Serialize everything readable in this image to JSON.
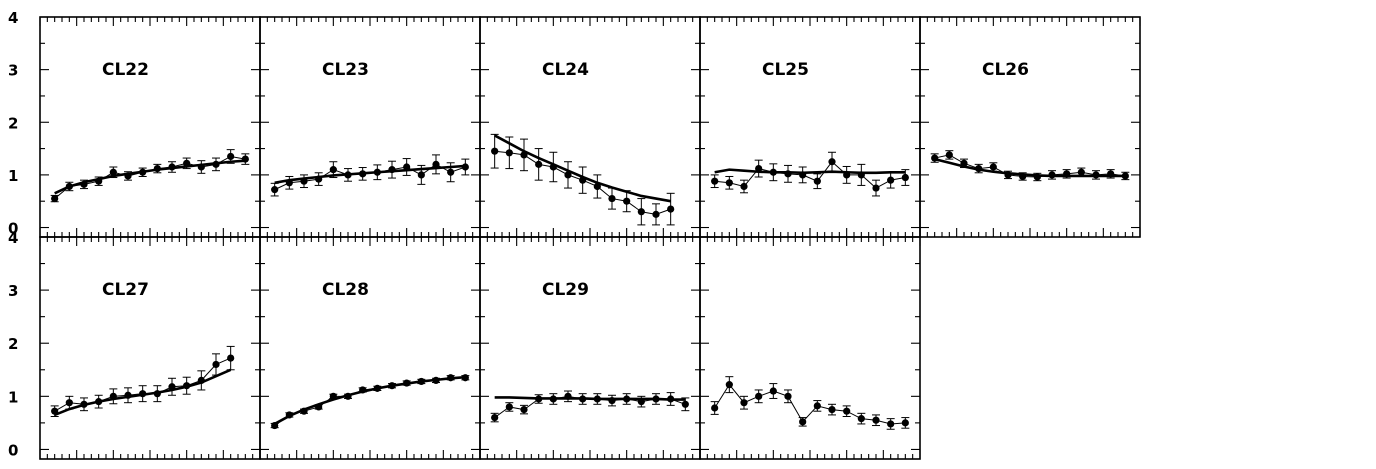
{
  "chart_data": {
    "type": "line",
    "layout": "2 rows x 5 columns of small-multiple panels",
    "ylim": [
      0,
      4
    ],
    "y_ticks": [
      "0",
      "1",
      "2",
      "3",
      "4"
    ],
    "x_labels_shown": false,
    "grid": false,
    "colors": {
      "ink": "#000000",
      "background": "#ffffff"
    },
    "panels": [
      {
        "label": "CL22",
        "x": [
          1,
          2,
          3,
          4,
          5,
          6,
          7,
          8,
          9,
          10,
          11,
          12,
          13,
          14
        ],
        "observed": [
          0.55,
          0.78,
          0.82,
          0.88,
          1.05,
          0.98,
          1.05,
          1.12,
          1.15,
          1.22,
          1.15,
          1.2,
          1.35,
          1.3
        ],
        "error": [
          0.06,
          0.08,
          0.08,
          0.08,
          0.1,
          0.08,
          0.08,
          0.08,
          0.1,
          0.1,
          0.12,
          0.12,
          0.13,
          0.1
        ],
        "model": [
          0.65,
          0.78,
          0.86,
          0.92,
          0.98,
          1.02,
          1.06,
          1.1,
          1.13,
          1.16,
          1.19,
          1.22,
          1.25,
          1.27
        ]
      },
      {
        "label": "CL23",
        "x": [
          1,
          2,
          3,
          4,
          5,
          6,
          7,
          8,
          9,
          10,
          11,
          12,
          13,
          14
        ],
        "observed": [
          0.72,
          0.85,
          0.88,
          0.92,
          1.1,
          1.0,
          1.02,
          1.05,
          1.1,
          1.15,
          1.0,
          1.2,
          1.05,
          1.15
        ],
        "error": [
          0.12,
          0.12,
          0.12,
          0.12,
          0.15,
          0.12,
          0.12,
          0.14,
          0.16,
          0.16,
          0.18,
          0.18,
          0.18,
          0.15
        ],
        "model": [
          0.85,
          0.9,
          0.93,
          0.96,
          0.99,
          1.01,
          1.03,
          1.05,
          1.07,
          1.09,
          1.11,
          1.13,
          1.15,
          1.17
        ]
      },
      {
        "label": "CL24",
        "x": [
          1,
          2,
          3,
          4,
          5,
          6,
          7,
          8,
          9,
          10,
          11,
          12,
          13
        ],
        "observed": [
          1.45,
          1.42,
          1.38,
          1.2,
          1.15,
          1.0,
          0.9,
          0.78,
          0.55,
          0.5,
          0.3,
          0.25,
          0.35
        ],
        "error": [
          0.32,
          0.3,
          0.3,
          0.3,
          0.28,
          0.25,
          0.25,
          0.22,
          0.2,
          0.2,
          0.25,
          0.2,
          0.3
        ],
        "model": [
          1.75,
          1.6,
          1.45,
          1.32,
          1.2,
          1.08,
          0.96,
          0.85,
          0.76,
          0.68,
          0.6,
          0.55,
          0.5
        ]
      },
      {
        "label": "CL25",
        "x": [
          1,
          2,
          3,
          4,
          5,
          6,
          7,
          8,
          9,
          10,
          11,
          12,
          13,
          14
        ],
        "observed": [
          0.88,
          0.85,
          0.78,
          1.12,
          1.05,
          1.02,
          1.0,
          0.88,
          1.25,
          1.0,
          1.0,
          0.75,
          0.9,
          0.95
        ],
        "error": [
          0.12,
          0.12,
          0.12,
          0.16,
          0.16,
          0.16,
          0.15,
          0.14,
          0.18,
          0.16,
          0.2,
          0.15,
          0.15,
          0.15
        ],
        "model": [
          1.05,
          1.1,
          1.08,
          1.06,
          1.05,
          1.05,
          1.04,
          1.05,
          1.06,
          1.05,
          1.04,
          1.04,
          1.05,
          1.05
        ]
      },
      {
        "label": "CL26",
        "x": [
          1,
          2,
          3,
          4,
          5,
          6,
          7,
          8,
          9,
          10,
          11,
          12,
          13,
          14
        ],
        "observed": [
          1.32,
          1.38,
          1.22,
          1.12,
          1.15,
          1.0,
          0.97,
          0.96,
          1.0,
          1.02,
          1.05,
          1.0,
          1.02,
          0.98
        ],
        "error": [
          0.08,
          0.08,
          0.08,
          0.08,
          0.08,
          0.07,
          0.07,
          0.07,
          0.08,
          0.08,
          0.08,
          0.08,
          0.08,
          0.07
        ],
        "model": [
          1.3,
          1.23,
          1.16,
          1.1,
          1.06,
          1.03,
          1.01,
          0.99,
          0.98,
          0.98,
          0.98,
          0.98,
          0.98,
          0.98
        ]
      },
      {
        "label": "CL27",
        "x": [
          1,
          2,
          3,
          4,
          5,
          6,
          7,
          8,
          9,
          10,
          11,
          12,
          13
        ],
        "observed": [
          0.72,
          0.88,
          0.85,
          0.9,
          1.0,
          1.02,
          1.05,
          1.05,
          1.18,
          1.2,
          1.3,
          1.6,
          1.72
        ],
        "error": [
          0.1,
          0.12,
          0.12,
          0.12,
          0.14,
          0.14,
          0.15,
          0.15,
          0.16,
          0.16,
          0.18,
          0.2,
          0.22
        ],
        "model": [
          0.65,
          0.76,
          0.84,
          0.9,
          0.95,
          0.99,
          1.03,
          1.07,
          1.12,
          1.18,
          1.26,
          1.38,
          1.5
        ]
      },
      {
        "label": "CL28",
        "x": [
          1,
          2,
          3,
          4,
          5,
          6,
          7,
          8,
          9,
          10,
          11,
          12,
          13,
          14
        ],
        "observed": [
          0.45,
          0.65,
          0.72,
          0.8,
          1.0,
          1.0,
          1.12,
          1.15,
          1.2,
          1.25,
          1.28,
          1.3,
          1.35,
          1.35
        ],
        "error": [
          0.04,
          0.04,
          0.04,
          0.04,
          0.04,
          0.04,
          0.04,
          0.04,
          0.04,
          0.04,
          0.04,
          0.04,
          0.04,
          0.04
        ],
        "model": [
          0.48,
          0.63,
          0.75,
          0.85,
          0.94,
          1.02,
          1.09,
          1.15,
          1.2,
          1.24,
          1.28,
          1.31,
          1.34,
          1.36
        ]
      },
      {
        "label": "CL29",
        "x": [
          1,
          2,
          3,
          4,
          5,
          6,
          7,
          8,
          9,
          10,
          11,
          12,
          13,
          14
        ],
        "observed": [
          0.6,
          0.8,
          0.75,
          0.95,
          0.95,
          1.0,
          0.95,
          0.95,
          0.92,
          0.95,
          0.9,
          0.95,
          0.95,
          0.85
        ],
        "error": [
          0.08,
          0.08,
          0.08,
          0.08,
          0.1,
          0.1,
          0.1,
          0.1,
          0.1,
          0.1,
          0.1,
          0.1,
          0.12,
          0.12
        ],
        "model": [
          0.98,
          0.98,
          0.97,
          0.96,
          0.96,
          0.96,
          0.96,
          0.95,
          0.95,
          0.95,
          0.95,
          0.95,
          0.94,
          0.94
        ]
      },
      {
        "label": "",
        "x": [
          1,
          2,
          3,
          4,
          5,
          6,
          7,
          8,
          9,
          10,
          11,
          12,
          13,
          14
        ],
        "observed": [
          0.78,
          1.22,
          0.88,
          1.0,
          1.1,
          1.0,
          0.52,
          0.82,
          0.75,
          0.72,
          0.58,
          0.55,
          0.48,
          0.5
        ],
        "error": [
          0.12,
          0.15,
          0.12,
          0.12,
          0.14,
          0.12,
          0.08,
          0.1,
          0.1,
          0.1,
          0.1,
          0.1,
          0.1,
          0.1
        ],
        "model": null
      }
    ]
  }
}
